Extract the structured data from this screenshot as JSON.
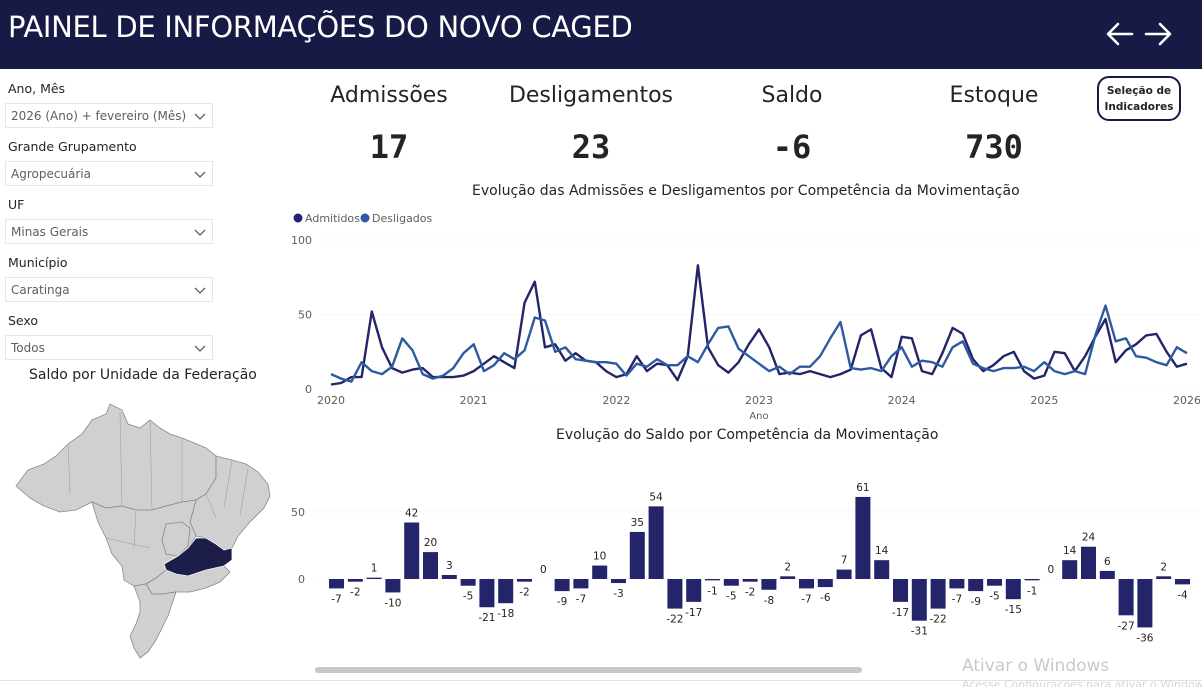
{
  "header": {
    "title": "PAINEL DE INFORMAÇÕES DO NOVO CAGED",
    "back_icon": "arrow-left-icon",
    "forward_icon": "arrow-right-icon"
  },
  "filters": [
    {
      "label": "Ano, Mês",
      "value": "2026 (Ano) + fevereiro (Mês)"
    },
    {
      "label": "Grande Grupamento",
      "value": "Agropecuária"
    },
    {
      "label": "UF",
      "value": "Minas Gerais"
    },
    {
      "label": "Município",
      "value": "Caratinga"
    },
    {
      "label": "Sexo",
      "value": "Todos"
    }
  ],
  "map": {
    "title": "Saldo por Unidade da Federação",
    "highlight_color": "#1d1d4a",
    "base_color": "#d0d0d0"
  },
  "kpis": [
    {
      "label": "Admissões",
      "value": "17"
    },
    {
      "label": "Desligamentos",
      "value": "23"
    },
    {
      "label": "Saldo",
      "value": "-6"
    },
    {
      "label": "Estoque",
      "value": "730"
    }
  ],
  "indicators_button": {
    "line1": "Seleção de",
    "line2": "Indicadores"
  },
  "colors": {
    "header": "#171a44",
    "admitidos": "#24246b",
    "desligados": "#2d5aa0",
    "bar": "#24246b"
  },
  "line_chart_title": "Evolução das Admissões e Desligamentos por Competência da Movimentação",
  "bar_chart_title": "Evolução do Saldo por Competência da Movimentação",
  "watermark": {
    "line1": "Ativar o Windows",
    "line2": "Acesse Configurações para ativar o Windows."
  },
  "chart_data": [
    {
      "type": "line",
      "title": "Evolução das Admissões e Desligamentos por Competência da Movimentação",
      "xlabel": "Ano",
      "ylabel": "",
      "ylim": [
        0,
        100
      ],
      "yticks": [
        0,
        50,
        100
      ],
      "xticks": [
        "2020",
        "2021",
        "2022",
        "2023",
        "2024",
        "2025",
        "2026"
      ],
      "legend_position": "top-left",
      "grid": true,
      "series": [
        {
          "name": "Admitidos",
          "values": [
            3,
            4,
            8,
            8,
            52,
            28,
            14,
            11,
            13,
            14,
            8,
            8,
            8,
            9,
            12,
            17,
            22,
            18,
            14,
            58,
            72,
            28,
            30,
            19,
            24,
            19,
            18,
            12,
            8,
            10,
            22,
            12,
            17,
            16,
            6,
            22,
            83,
            28,
            16,
            11,
            18,
            30,
            40,
            28,
            10,
            11,
            10,
            12,
            10,
            8,
            10,
            13,
            36,
            40,
            14,
            8,
            35,
            34,
            12,
            10,
            24,
            41,
            37,
            20,
            12,
            16,
            22,
            25,
            12,
            7,
            9,
            25,
            24,
            12,
            22,
            35,
            47,
            18,
            26,
            30,
            36,
            37,
            25,
            15,
            17
          ]
        },
        {
          "name": "Desligados",
          "values": [
            10,
            7,
            5,
            18,
            12,
            10,
            15,
            34,
            26,
            10,
            7,
            9,
            14,
            24,
            30,
            12,
            16,
            24,
            20,
            26,
            48,
            46,
            25,
            28,
            20,
            19,
            18,
            18,
            17,
            9,
            17,
            15,
            20,
            16,
            16,
            22,
            18,
            30,
            41,
            42,
            27,
            22,
            17,
            12,
            15,
            10,
            15,
            15,
            22,
            34,
            45,
            14,
            13,
            14,
            12,
            22,
            28,
            15,
            19,
            18,
            15,
            28,
            32,
            17,
            14,
            12,
            14,
            14,
            15,
            12,
            18,
            12,
            10,
            12,
            10,
            36,
            56,
            32,
            34,
            22,
            21,
            18,
            16,
            28,
            24
          ]
        }
      ]
    },
    {
      "type": "bar",
      "title": "Evolução do Saldo por Competência da Movimentação",
      "xlabel": "",
      "ylabel": "",
      "yticks": [
        0,
        50
      ],
      "grid": true,
      "values": [
        -7,
        -2,
        1,
        -10,
        42,
        20,
        3,
        -5,
        -21,
        -18,
        -2,
        0,
        -9,
        -7,
        10,
        -3,
        35,
        54,
        -22,
        -17,
        -1,
        -5,
        -2,
        -8,
        2,
        -7,
        -6,
        7,
        61,
        14,
        -17,
        -31,
        -22,
        -7,
        -9,
        -5,
        -15,
        -1,
        0,
        14,
        24,
        6,
        -27,
        -36,
        2,
        -4
      ]
    }
  ]
}
